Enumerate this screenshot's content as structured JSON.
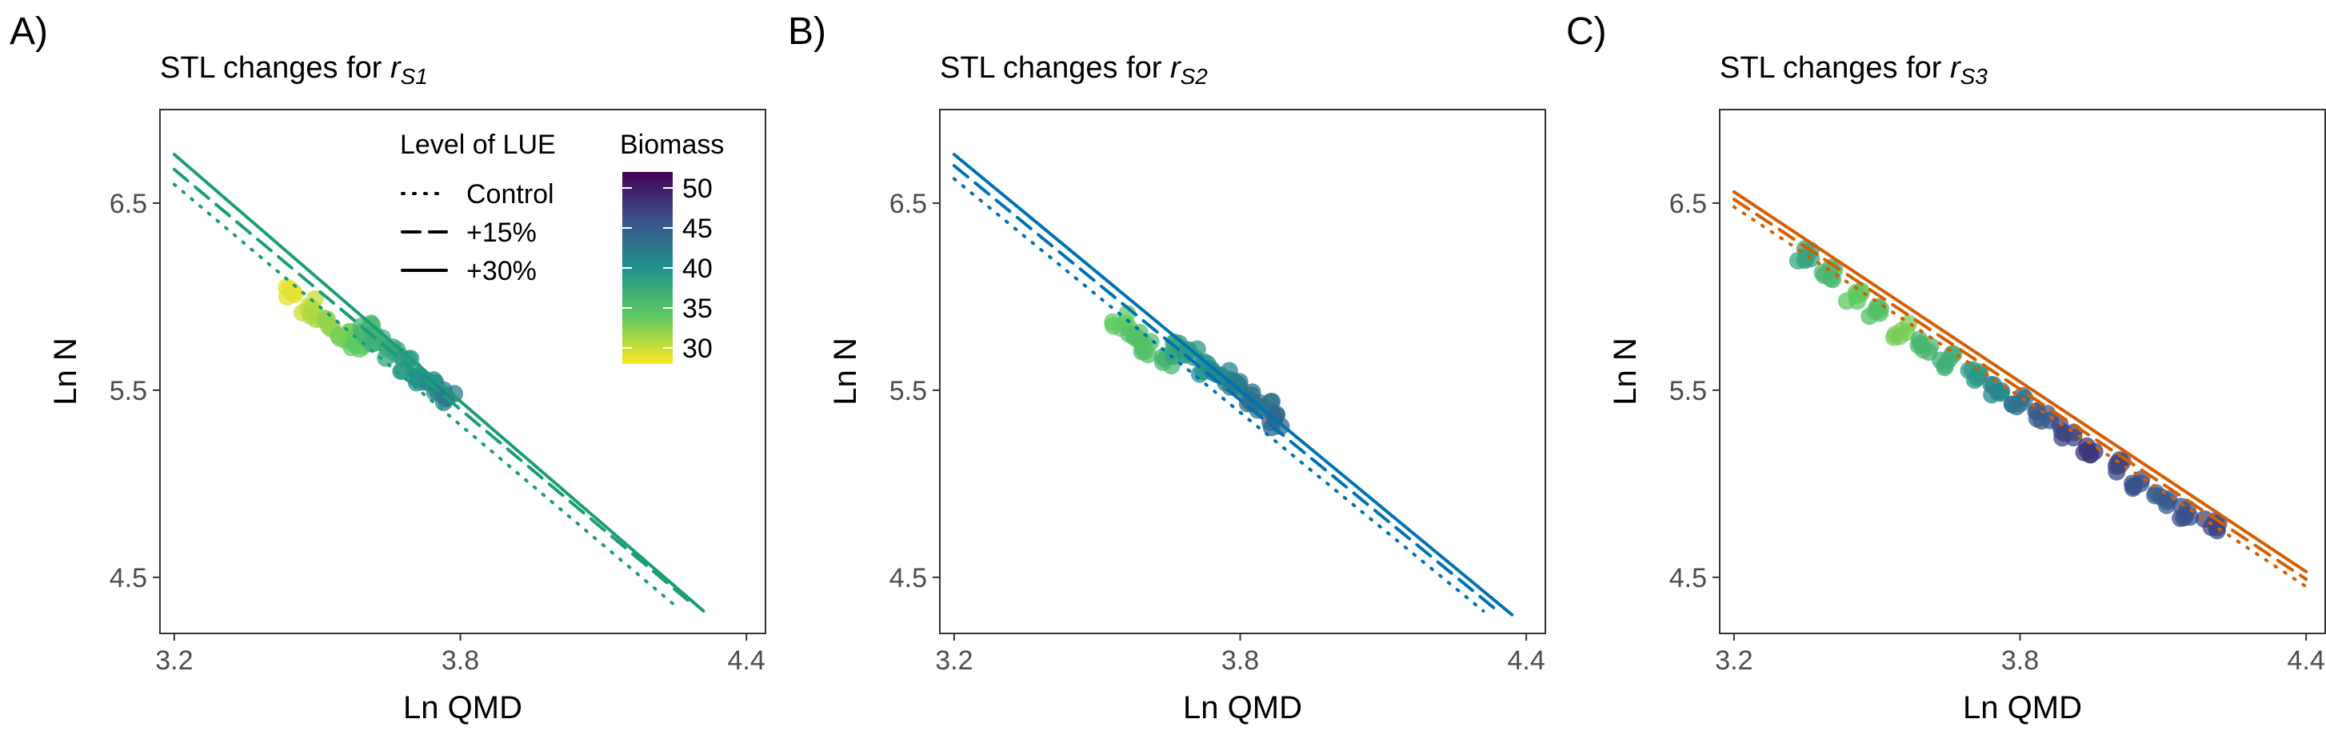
{
  "figure": {
    "panels": [
      {
        "tag": "A)",
        "title_prefix": "STL changes for ",
        "title_symbol": "r",
        "title_subscript": "S1",
        "color": "#1b9e77",
        "legend": {
          "lue_title": "Level of LUE",
          "lue_levels": [
            "Control",
            "+15%",
            "+30%"
          ],
          "biomass_title": "Biomass",
          "biomass_ticks": [
            "50",
            "45",
            "40",
            "35",
            "30"
          ]
        }
      },
      {
        "tag": "B)",
        "title_prefix": "STL changes for ",
        "title_symbol": "r",
        "title_subscript": "S2",
        "color": "#0072b2"
      },
      {
        "tag": "C)",
        "title_prefix": "STL changes for ",
        "title_symbol": "r",
        "title_subscript": "S3",
        "color": "#d55e00"
      }
    ]
  },
  "chart_data": [
    {
      "type": "scatter",
      "title": "STL changes for rS1",
      "xlabel": "Ln QMD",
      "ylabel": "Ln N",
      "xlim": [
        3.17,
        4.44
      ],
      "ylim": [
        4.2,
        7.0
      ],
      "x_ticks": [
        "3.2",
        "3.8",
        "4.4"
      ],
      "y_ticks": [
        "4.5",
        "5.5",
        "6.5"
      ],
      "grid": false,
      "legend_position": "top-right-inside",
      "color_scale": {
        "name": "Biomass",
        "palette": "viridis-reversed",
        "min": 28,
        "max": 52,
        "ticks": [
          30,
          35,
          40,
          45,
          50
        ]
      },
      "lines": [
        {
          "level": "Control",
          "linestyle": "dotted",
          "x": [
            3.2,
            4.25
          ],
          "y": [
            6.6,
            4.35
          ]
        },
        {
          "level": "+15%",
          "linestyle": "dashed",
          "x": [
            3.2,
            4.29
          ],
          "y": [
            6.68,
            4.35
          ]
        },
        {
          "level": "+30%",
          "linestyle": "solid",
          "x": [
            3.2,
            4.31
          ],
          "y": [
            6.76,
            4.32
          ]
        }
      ],
      "points": [
        {
          "x": 3.45,
          "y": 6.02,
          "biomass": 29
        },
        {
          "x": 3.48,
          "y": 5.95,
          "biomass": 30
        },
        {
          "x": 3.5,
          "y": 5.9,
          "biomass": 31
        },
        {
          "x": 3.53,
          "y": 5.85,
          "biomass": 32
        },
        {
          "x": 3.56,
          "y": 5.8,
          "biomass": 33
        },
        {
          "x": 3.58,
          "y": 5.75,
          "biomass": 34
        },
        {
          "x": 3.6,
          "y": 5.82,
          "biomass": 36
        },
        {
          "x": 3.63,
          "y": 5.76,
          "biomass": 37
        },
        {
          "x": 3.66,
          "y": 5.7,
          "biomass": 38
        },
        {
          "x": 3.69,
          "y": 5.64,
          "biomass": 39
        },
        {
          "x": 3.72,
          "y": 5.58,
          "biomass": 40
        },
        {
          "x": 3.75,
          "y": 5.52,
          "biomass": 41
        },
        {
          "x": 3.78,
          "y": 5.47,
          "biomass": 42
        }
      ]
    },
    {
      "type": "scatter",
      "title": "STL changes for rS2",
      "xlabel": "Ln QMD",
      "ylabel": "Ln N",
      "xlim": [
        3.17,
        4.44
      ],
      "ylim": [
        4.2,
        7.0
      ],
      "x_ticks": [
        "3.2",
        "3.8",
        "4.4"
      ],
      "y_ticks": [
        "4.5",
        "5.5",
        "6.5"
      ],
      "grid": false,
      "lines": [
        {
          "level": "Control",
          "linestyle": "dotted",
          "x": [
            3.2,
            4.31
          ],
          "y": [
            6.63,
            4.32
          ]
        },
        {
          "level": "+15%",
          "linestyle": "dashed",
          "x": [
            3.2,
            4.34
          ],
          "y": [
            6.7,
            4.32
          ]
        },
        {
          "level": "+30%",
          "linestyle": "solid",
          "x": [
            3.2,
            4.37
          ],
          "y": [
            6.76,
            4.3
          ]
        }
      ],
      "points": [
        {
          "x": 3.55,
          "y": 5.87,
          "biomass": 34
        },
        {
          "x": 3.58,
          "y": 5.8,
          "biomass": 35
        },
        {
          "x": 3.61,
          "y": 5.73,
          "biomass": 35
        },
        {
          "x": 3.64,
          "y": 5.66,
          "biomass": 36
        },
        {
          "x": 3.67,
          "y": 5.72,
          "biomass": 38
        },
        {
          "x": 3.7,
          "y": 5.68,
          "biomass": 39
        },
        {
          "x": 3.73,
          "y": 5.62,
          "biomass": 40
        },
        {
          "x": 3.76,
          "y": 5.57,
          "biomass": 41
        },
        {
          "x": 3.79,
          "y": 5.52,
          "biomass": 42
        },
        {
          "x": 3.82,
          "y": 5.46,
          "biomass": 43
        },
        {
          "x": 3.85,
          "y": 5.4,
          "biomass": 43
        },
        {
          "x": 3.88,
          "y": 5.34,
          "biomass": 44
        }
      ]
    },
    {
      "type": "scatter",
      "title": "STL changes for rS3",
      "xlabel": "Ln QMD",
      "ylabel": "Ln N",
      "xlim": [
        3.17,
        4.44
      ],
      "ylim": [
        4.2,
        7.0
      ],
      "x_ticks": [
        "3.2",
        "3.8",
        "4.4"
      ],
      "y_ticks": [
        "4.5",
        "5.5",
        "6.5"
      ],
      "grid": false,
      "lines": [
        {
          "level": "Control",
          "linestyle": "dotted",
          "x": [
            3.2,
            4.4
          ],
          "y": [
            6.48,
            4.45
          ]
        },
        {
          "level": "+15%",
          "linestyle": "dashed",
          "x": [
            3.2,
            4.4
          ],
          "y": [
            6.52,
            4.49
          ]
        },
        {
          "level": "+30%",
          "linestyle": "solid",
          "x": [
            3.2,
            4.4
          ],
          "y": [
            6.56,
            4.53
          ]
        }
      ],
      "points": [
        {
          "x": 3.35,
          "y": 6.22,
          "biomass": 38
        },
        {
          "x": 3.4,
          "y": 6.12,
          "biomass": 36
        },
        {
          "x": 3.45,
          "y": 6.0,
          "biomass": 34
        },
        {
          "x": 3.5,
          "y": 5.92,
          "biomass": 35
        },
        {
          "x": 3.55,
          "y": 5.82,
          "biomass": 33
        },
        {
          "x": 3.6,
          "y": 5.74,
          "biomass": 36
        },
        {
          "x": 3.65,
          "y": 5.66,
          "biomass": 37
        },
        {
          "x": 3.7,
          "y": 5.57,
          "biomass": 39
        },
        {
          "x": 3.75,
          "y": 5.5,
          "biomass": 41
        },
        {
          "x": 3.8,
          "y": 5.44,
          "biomass": 43
        },
        {
          "x": 3.85,
          "y": 5.36,
          "biomass": 45
        },
        {
          "x": 3.9,
          "y": 5.28,
          "biomass": 47
        },
        {
          "x": 3.95,
          "y": 5.18,
          "biomass": 48
        },
        {
          "x": 4.0,
          "y": 5.1,
          "biomass": 47
        },
        {
          "x": 4.05,
          "y": 5.0,
          "biomass": 46
        },
        {
          "x": 4.1,
          "y": 4.92,
          "biomass": 45
        },
        {
          "x": 4.15,
          "y": 4.85,
          "biomass": 46
        },
        {
          "x": 4.2,
          "y": 4.78,
          "biomass": 47
        }
      ]
    }
  ]
}
